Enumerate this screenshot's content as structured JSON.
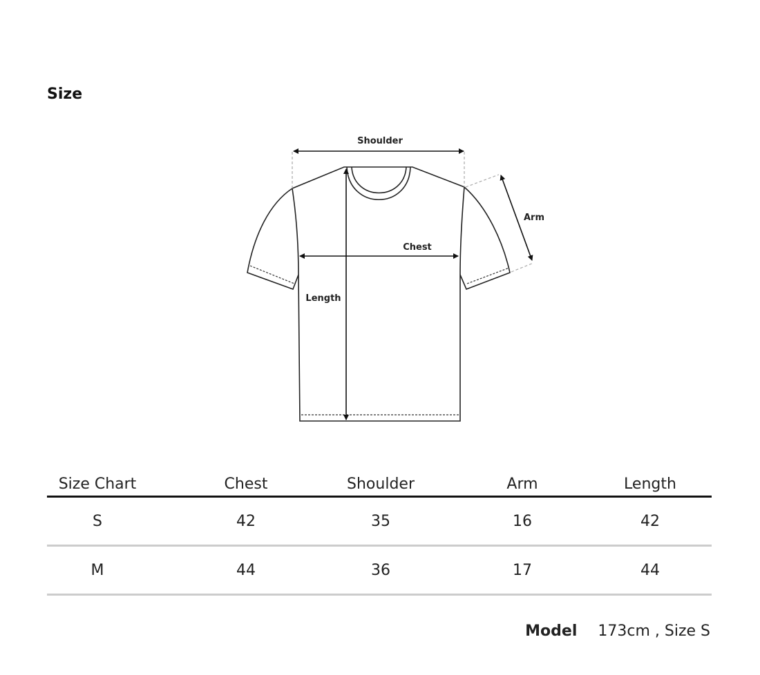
{
  "title": "Size",
  "diagram": {
    "labels": {
      "shoulder": "Shoulder",
      "chest": "Chest",
      "length": "Length",
      "arm": "Arm"
    }
  },
  "size_chart": {
    "headers": [
      "Size Chart",
      "Chest",
      "Shoulder",
      "Arm",
      "Length"
    ],
    "rows": [
      [
        "S",
        "42",
        "35",
        "16",
        "42"
      ],
      [
        "M",
        "44",
        "36",
        "17",
        "44"
      ]
    ]
  },
  "model": {
    "label": "Model",
    "value": "173cm , Size S"
  }
}
